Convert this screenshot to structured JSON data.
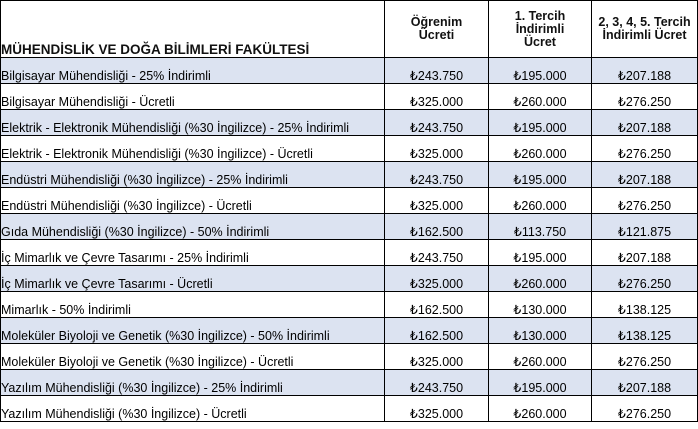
{
  "header": {
    "faculty": "MÜHENDİSLİK VE DOĞA BİLİMLERİ FAKÜLTESİ",
    "col_tuition": [
      "Öğrenim",
      "Ücreti"
    ],
    "col_first_pref": [
      "1. Tercih",
      "İndirimli",
      "Ücret"
    ],
    "col_other_pref": [
      "2, 3, 4, 5.  Tercih",
      "İndirimli Ücret"
    ]
  },
  "rows": [
    {
      "program": "Bilgisayar Mühendisliği - 25% İndirimli",
      "tuition": "₺243.750",
      "first": "₺195.000",
      "other": "₺207.188"
    },
    {
      "program": "Bilgisayar Mühendisliği - Ücretli",
      "tuition": "₺325.000",
      "first": "₺260.000",
      "other": "₺276.250"
    },
    {
      "program": "Elektrik - Elektronik Mühendisliği (%30 İngilizce) - 25% İndirimli",
      "tuition": "₺243.750",
      "first": "₺195.000",
      "other": "₺207.188"
    },
    {
      "program": "Elektrik - Elektronik Mühendisliği (%30 İngilizce) - Ücretli",
      "tuition": "₺325.000",
      "first": "₺260.000",
      "other": "₺276.250"
    },
    {
      "program": "Endüstri Mühendisliği (%30 İngilizce) - 25% İndirimli",
      "tuition": "₺243.750",
      "first": "₺195.000",
      "other": "₺207.188"
    },
    {
      "program": "Endüstri Mühendisliği (%30 İngilizce) - Ücretli",
      "tuition": "₺325.000",
      "first": "₺260.000",
      "other": "₺276.250"
    },
    {
      "program": "Gıda Mühendisliği (%30 İngilizce) - 50% İndirimli",
      "tuition": "₺162.500",
      "first": "₺113.750",
      "other": "₺121.875"
    },
    {
      "program": "İç Mimarlık ve Çevre Tasarımı - 25% İndirimli",
      "tuition": "₺243.750",
      "first": "₺195.000",
      "other": "₺207.188"
    },
    {
      "program": "İç Mimarlık ve Çevre Tasarımı - Ücretli",
      "tuition": "₺325.000",
      "first": "₺260.000",
      "other": "₺276.250"
    },
    {
      "program": "Mimarlık - 50% İndirimli",
      "tuition": "₺162.500",
      "first": "₺130.000",
      "other": "₺138.125"
    },
    {
      "program": "Moleküler Biyoloji ve Genetik (%30 İngilizce) - 50% İndirimli",
      "tuition": "₺162.500",
      "first": "₺130.000",
      "other": "₺138.125"
    },
    {
      "program": "Moleküler Biyoloji ve Genetik (%30 İngilizce) - Ücretli",
      "tuition": "₺325.000",
      "first": "₺260.000",
      "other": "₺276.250"
    },
    {
      "program": "Yazılım Mühendisliği (%30 İngilizce) - 25% İndirimli",
      "tuition": "₺243.750",
      "first": "₺195.000",
      "other": "₺207.188"
    },
    {
      "program": "Yazılım Mühendisliği (%30 İngilizce) - Ücretli",
      "tuition": "₺325.000",
      "first": "₺260.000",
      "other": "₺276.250"
    }
  ],
  "colors": {
    "row_shade": "#dce3f1",
    "border": "#000000"
  }
}
